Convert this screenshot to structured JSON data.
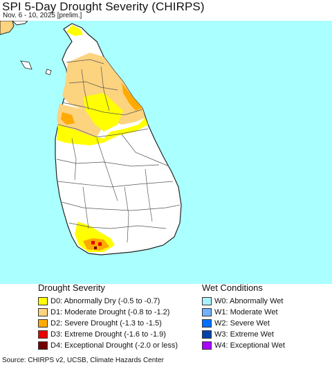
{
  "header": {
    "title": "SPI 5-Day Drought Severity (CHIRPS)",
    "subtitle": "Nov. 6 - 10, 2025 [prelim.]"
  },
  "map": {
    "ocean_color": "#aaffff",
    "land_color": "#ffffff",
    "border_color": "#222222",
    "district_line_color": "#555555"
  },
  "legend": {
    "drought_heading": "Drought Severity",
    "wet_heading": "Wet Conditions",
    "drought_items": [
      {
        "label": "D0: Abnormally Dry (-0.5 to -0.7)",
        "color": "#ffff00"
      },
      {
        "label": "D1: Moderate Drought (-0.8 to -1.2)",
        "color": "#fcd37f"
      },
      {
        "label": "D2: Severe Drought (-1.3 to -1.5)",
        "color": "#ffaa00"
      },
      {
        "label": "D3: Extreme Drought (-1.6 to -1.9)",
        "color": "#e60000"
      },
      {
        "label": "D4: Exceptional Drought (-2.0 or less)",
        "color": "#730000"
      }
    ],
    "wet_items": [
      {
        "label": "W0: Abnormally Wet",
        "color": "#aaf0ff"
      },
      {
        "label": "W1: Moderate Wet",
        "color": "#73b2ff"
      },
      {
        "label": "W2: Severe Wet",
        "color": "#0070ff"
      },
      {
        "label": "W3: Extreme Wet",
        "color": "#0044aa"
      },
      {
        "label": "W4: Exceptional Wet",
        "color": "#aa00ff"
      }
    ]
  },
  "footer": {
    "source": "Source: CHIRPS v2, UCSB, Climate Hazards Center"
  }
}
